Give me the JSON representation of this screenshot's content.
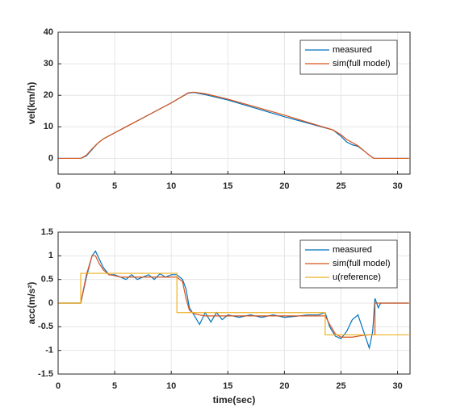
{
  "chart_data": [
    {
      "type": "line",
      "ylabel": "vel(km/h)",
      "grid": true,
      "legend": "upper right",
      "xlim": [
        0,
        31.1
      ],
      "xticks": [
        0,
        5,
        10,
        15,
        20,
        25,
        30
      ],
      "ylim": [
        -5,
        40
      ],
      "yticks": [
        0,
        10,
        20,
        30,
        40
      ],
      "x": [
        0,
        2,
        2.5,
        3,
        3.5,
        4,
        6,
        8,
        10,
        11.5,
        12,
        13,
        15,
        20,
        24.3,
        25,
        25.5,
        26,
        26.5,
        27,
        27.5,
        27.9,
        31
      ],
      "series": [
        {
          "name": "measured",
          "color": "#0072bd",
          "values": [
            0,
            0,
            0.8,
            2.8,
            4.8,
            6.2,
            10,
            13.8,
            17.6,
            20.7,
            20.9,
            20.2,
            18.5,
            13.2,
            9,
            7,
            5.2,
            4.3,
            3.8,
            2.5,
            1,
            0,
            0
          ]
        },
        {
          "name": "sim(full model)",
          "color": "#d95319",
          "values": [
            0,
            0,
            1,
            3,
            4.8,
            6.2,
            10,
            13.8,
            17.6,
            20.8,
            21,
            20.5,
            18.8,
            13.7,
            9,
            7.5,
            6,
            5,
            4,
            2.5,
            1,
            0,
            0
          ]
        }
      ]
    },
    {
      "type": "line",
      "ylabel": "acc(m/s²)",
      "xlabel": "time(sec)",
      "grid": true,
      "legend": "upper right",
      "xlim": [
        0,
        31.1
      ],
      "xticks": [
        0,
        5,
        10,
        15,
        20,
        25,
        30
      ],
      "ylim": [
        -1.5,
        1.5
      ],
      "yticks": [
        -1.5,
        -1,
        -0.5,
        0,
        0.5,
        1,
        1.5
      ],
      "x": [
        0,
        2,
        2,
        2.5,
        3,
        3.3,
        3.6,
        4,
        4.5,
        5,
        5.5,
        6,
        6.5,
        7,
        7.5,
        8,
        8.5,
        9,
        9.5,
        10,
        10.5,
        10.5,
        11,
        11.3,
        11.6,
        12,
        12.5,
        13,
        13.5,
        14,
        14.5,
        15,
        16,
        17,
        18,
        19,
        20,
        21,
        22,
        23,
        23.6,
        23.6,
        24,
        24.5,
        25,
        25.5,
        26,
        26.5,
        27,
        27.5,
        27.8,
        28,
        28,
        28.3,
        28.5,
        31
      ],
      "series": [
        {
          "name": "measured",
          "color": "#0072bd",
          "values": [
            0,
            0,
            0,
            0.55,
            1.0,
            1.1,
            0.95,
            0.75,
            0.6,
            0.6,
            0.55,
            0.5,
            0.6,
            0.5,
            0.55,
            0.6,
            0.5,
            0.62,
            0.55,
            0.6,
            0.6,
            0.6,
            0.5,
            0.3,
            -0.1,
            -0.25,
            -0.45,
            -0.2,
            -0.4,
            -0.2,
            -0.35,
            -0.25,
            -0.3,
            -0.25,
            -0.3,
            -0.25,
            -0.3,
            -0.28,
            -0.25,
            -0.25,
            -0.2,
            -0.2,
            -0.5,
            -0.7,
            -0.75,
            -0.6,
            -0.35,
            -0.25,
            -0.6,
            -0.95,
            -0.6,
            0.1,
            0.1,
            -0.1,
            0,
            0
          ]
        },
        {
          "name": "sim(full model)",
          "color": "#d95319",
          "values": [
            0,
            0,
            0,
            0.6,
            1.0,
            1.0,
            0.85,
            0.7,
            0.6,
            0.58,
            0.55,
            0.55,
            0.55,
            0.55,
            0.55,
            0.55,
            0.55,
            0.55,
            0.55,
            0.55,
            0.55,
            0.55,
            0.45,
            0.1,
            -0.15,
            -0.22,
            -0.25,
            -0.27,
            -0.27,
            -0.27,
            -0.27,
            -0.27,
            -0.27,
            -0.27,
            -0.27,
            -0.27,
            -0.27,
            -0.27,
            -0.27,
            -0.27,
            -0.27,
            -0.27,
            -0.45,
            -0.65,
            -0.72,
            -0.72,
            -0.72,
            -0.7,
            -0.68,
            -0.67,
            -0.67,
            -0.67,
            0,
            0,
            0,
            0
          ]
        },
        {
          "name": "u(reference)",
          "color": "#edb120",
          "values": [
            0,
            0,
            0.63,
            0.63,
            0.63,
            0.63,
            0.63,
            0.63,
            0.63,
            0.63,
            0.63,
            0.63,
            0.63,
            0.63,
            0.63,
            0.63,
            0.63,
            0.63,
            0.63,
            0.63,
            0.63,
            -0.2,
            -0.2,
            -0.2,
            -0.2,
            -0.2,
            -0.2,
            -0.2,
            -0.2,
            -0.2,
            -0.2,
            -0.2,
            -0.2,
            -0.2,
            -0.2,
            -0.2,
            -0.2,
            -0.2,
            -0.2,
            -0.2,
            -0.2,
            -0.67,
            -0.67,
            -0.67,
            -0.67,
            -0.67,
            -0.67,
            -0.67,
            -0.67,
            -0.67,
            -0.67,
            -0.67,
            -0.67,
            -0.67,
            -0.67,
            -0.67
          ]
        }
      ]
    }
  ]
}
